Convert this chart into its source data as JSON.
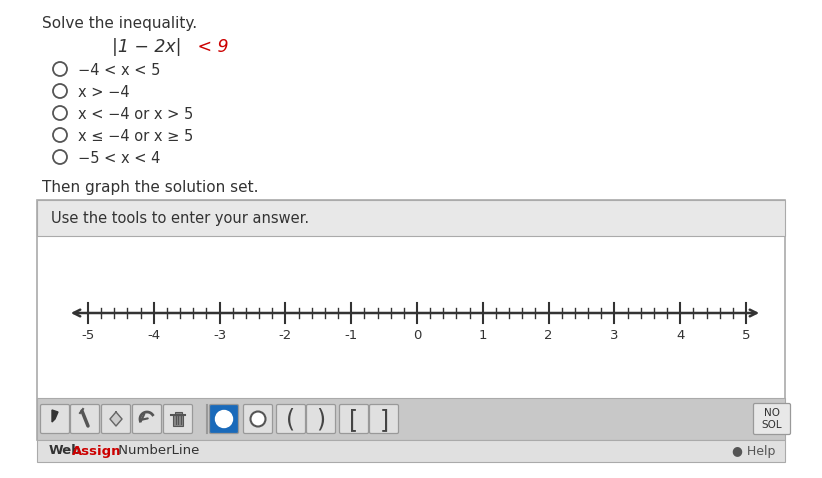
{
  "title": "Solve the inequality.",
  "eq_black": "|1 − 2x|",
  "eq_red": " < 9",
  "options": [
    "−4 < x < 5",
    "x > −4",
    "x < −4 or x > 5",
    "x ≤ −4 or x ≥ 5",
    "−5 < x < 4"
  ],
  "graph_section_label": "Then graph the solution set.",
  "tool_label": "Use the tools to enter your answer.",
  "nl_ticks": [
    -5,
    -4,
    -3,
    -2,
    -1,
    0,
    1,
    2,
    3,
    4,
    5
  ],
  "bg": "#ffffff",
  "header_bg": "#e8e8e8",
  "toolbar_bg": "#c8c8c8",
  "border_col": "#aaaaaa",
  "text_col": "#333333",
  "red_col": "#cc0000",
  "blue_btn_col": "#1a6aba",
  "no_sol": "NO\nSOL",
  "webassign_black": "Web",
  "webassign_red": "Assign",
  "numberline_text": " NumberLine",
  "help_text": "● Help"
}
